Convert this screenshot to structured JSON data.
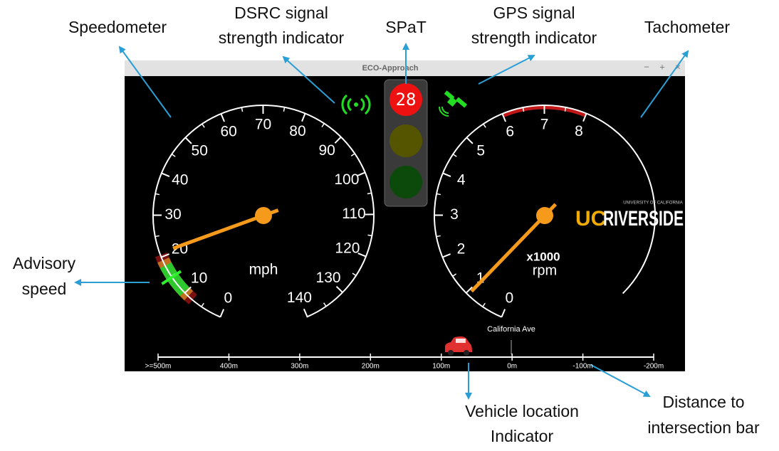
{
  "annotations": {
    "speedometer": "Speedometer",
    "dsrc": [
      "DSRC signal",
      "strength indicator"
    ],
    "spat": "SPaT",
    "gps": [
      "GPS signal",
      "strength indicator"
    ],
    "tachometer": "Tachometer",
    "advisory": [
      "Advisory",
      "speed"
    ],
    "vehicle": [
      "Vehicle location",
      "Indicator"
    ],
    "distance": [
      "Distance to",
      "intersection bar"
    ]
  },
  "window": {
    "title": "ECO-Approach",
    "controls": [
      "−",
      "+",
      "×"
    ]
  },
  "speedometer": {
    "labels": [
      "0",
      "10",
      "20",
      "30",
      "40",
      "50",
      "60",
      "70",
      "80",
      "90",
      "100",
      "110",
      "120",
      "130",
      "140"
    ],
    "unit": "mph"
  },
  "spat": {
    "countdown": "28"
  },
  "tachometer": {
    "labels": [
      "0",
      "1",
      "2",
      "3",
      "4",
      "5",
      "6",
      "7",
      "8"
    ],
    "multiplier": "x1000",
    "unit": "rpm"
  },
  "logo": {
    "uc": "UC",
    "name": "RIVERSIDE",
    "university": "UNIVERSITY OF CALIFORNIA"
  },
  "street": "California Ave",
  "distance_bar": {
    "labels": [
      ">=500m",
      "400m",
      "300m",
      "200m",
      "100m",
      "0m",
      "-100m",
      "-200m"
    ]
  }
}
